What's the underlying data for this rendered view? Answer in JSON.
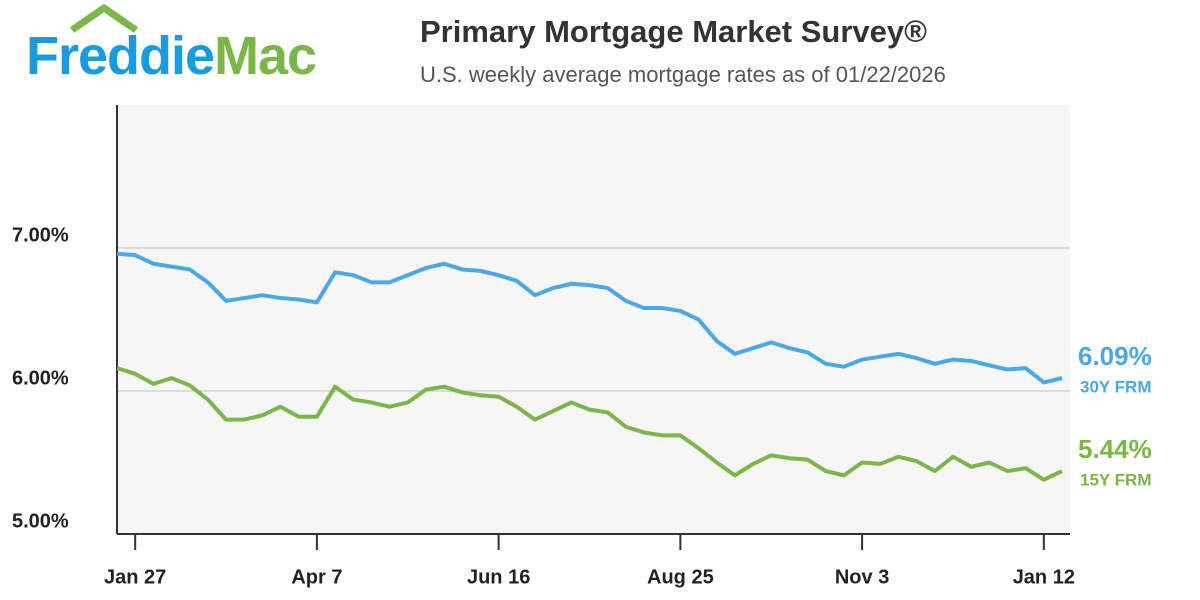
{
  "logo": {
    "first": "Freddie",
    "second": "Mac"
  },
  "chart_data": {
    "type": "line",
    "title": "Primary Mortgage Market Survey®",
    "subtitle": "U.S. weekly average mortgage rates as of 01/22/2026",
    "categories": [
      null,
      "Jan 27",
      null,
      null,
      null,
      null,
      null,
      null,
      null,
      null,
      null,
      "Apr 7",
      null,
      null,
      null,
      null,
      null,
      null,
      null,
      null,
      null,
      "Jun 16",
      null,
      null,
      null,
      null,
      null,
      null,
      null,
      null,
      null,
      "Aug 25",
      null,
      null,
      null,
      null,
      null,
      null,
      null,
      null,
      null,
      "Nov 3",
      null,
      null,
      null,
      null,
      null,
      null,
      null,
      null,
      null,
      "Jan 12",
      null
    ],
    "ylim": [
      5,
      8
    ],
    "yticks": [
      {
        "value": 5,
        "label": "5.00%"
      },
      {
        "value": 6,
        "label": "6.00%"
      },
      {
        "value": 7,
        "label": "7.00%"
      }
    ],
    "grid": true,
    "series": [
      {
        "name": "30Y FRM",
        "color": "#4aa8e8",
        "values": [
          6.96,
          6.95,
          6.89,
          6.87,
          6.85,
          6.76,
          6.63,
          6.65,
          6.67,
          6.65,
          6.64,
          6.62,
          6.83,
          6.81,
          6.76,
          6.76,
          6.81,
          6.86,
          6.89,
          6.85,
          6.84,
          6.81,
          6.77,
          6.67,
          6.72,
          6.75,
          6.74,
          6.72,
          6.63,
          6.58,
          6.58,
          6.56,
          6.5,
          6.35,
          6.26,
          6.3,
          6.34,
          6.3,
          6.27,
          6.19,
          6.17,
          6.22,
          6.24,
          6.26,
          6.23,
          6.19,
          6.22,
          6.21,
          6.18,
          6.15,
          6.16,
          6.06,
          6.09
        ],
        "value_labels": [
          null,
          null,
          null,
          null,
          null,
          null,
          null,
          null,
          null,
          null,
          null,
          null,
          null,
          null,
          null,
          null,
          null,
          null,
          null,
          null,
          null,
          null,
          null,
          null,
          null,
          null,
          null,
          null,
          null,
          null,
          null,
          null,
          null,
          null,
          null,
          null,
          null,
          null,
          null,
          null,
          null,
          null,
          null,
          null,
          null,
          null,
          null,
          null,
          null,
          null,
          null,
          null,
          "6.09%"
        ]
      },
      {
        "name": "15Y FRM",
        "color": "#7ab648",
        "values": [
          6.16,
          6.12,
          6.05,
          6.09,
          6.04,
          5.94,
          5.8,
          5.8,
          5.83,
          5.89,
          5.82,
          5.82,
          6.03,
          5.94,
          5.92,
          5.89,
          5.92,
          6.01,
          6.03,
          5.99,
          5.97,
          5.96,
          5.89,
          5.8,
          5.86,
          5.92,
          5.87,
          5.85,
          5.75,
          5.71,
          5.69,
          5.69,
          5.6,
          5.5,
          5.41,
          5.49,
          5.55,
          5.53,
          5.52,
          5.44,
          5.41,
          5.5,
          5.49,
          5.54,
          5.51,
          5.44,
          5.54,
          5.47,
          5.5,
          5.44,
          5.46,
          5.38,
          5.44
        ],
        "value_labels": [
          null,
          null,
          null,
          null,
          null,
          null,
          null,
          null,
          null,
          null,
          null,
          null,
          null,
          null,
          null,
          null,
          null,
          null,
          null,
          null,
          null,
          null,
          null,
          null,
          null,
          null,
          null,
          null,
          null,
          null,
          null,
          null,
          null,
          null,
          null,
          null,
          null,
          null,
          null,
          null,
          null,
          null,
          null,
          null,
          null,
          null,
          null,
          null,
          null,
          null,
          null,
          null,
          "5.44%"
        ]
      }
    ]
  }
}
